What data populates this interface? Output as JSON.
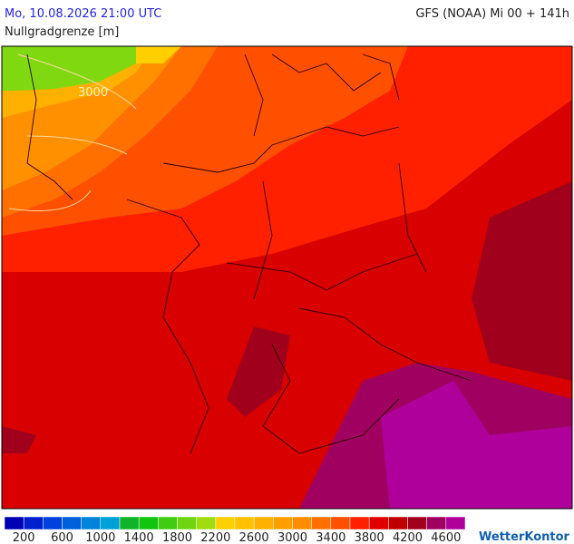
{
  "header": {
    "left": "Mo, 10.08.2026 21:00 UTC",
    "right": "GFS (NOAA) Mi 00 + 141h",
    "subtitle": "Nullgradgrenze [m]"
  },
  "map": {
    "contour_label": "3000"
  },
  "legend": {
    "colors": [
      "#0000b4",
      "#0020d0",
      "#0040dc",
      "#0060dc",
      "#0084dc",
      "#00a0d8",
      "#10b42a",
      "#10c410",
      "#40cc10",
      "#70d410",
      "#a0dc10",
      "#ffd000",
      "#ffc000",
      "#ffb000",
      "#ffa000",
      "#ff8c00",
      "#ff7000",
      "#ff5000",
      "#ff2000",
      "#e00000",
      "#c00000",
      "#a0001c",
      "#a00060",
      "#b0009c"
    ],
    "labels": [
      200,
      600,
      1000,
      1400,
      1800,
      2200,
      2600,
      3000,
      3400,
      3800,
      4200,
      4600
    ]
  },
  "logo": "WetterKontor"
}
